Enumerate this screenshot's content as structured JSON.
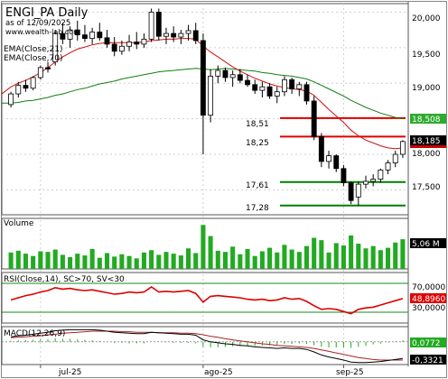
{
  "chart_data": {
    "type": "candlestick",
    "title": "ENGI_PA Daily",
    "subtitle": "as of 12/09/2025",
    "watermark": "www.wealth-lab.com",
    "indicators_legend": [
      "EMA(Close,21)",
      "EMA(Close,70)"
    ],
    "x_tick_labels": [
      "jul-25",
      "ago-25",
      "sep-25"
    ],
    "price_axis": {
      "ticks": [
        "20,000",
        "19,500",
        "19,000",
        "18,500",
        "18,000",
        "17,500"
      ],
      "ylim": [
        17.15,
        20.12
      ]
    },
    "levels": [
      {
        "label": "18,51",
        "value": 18.51,
        "color": "#e00000"
      },
      {
        "label": "18,25",
        "value": 18.25,
        "color": "#e00000"
      },
      {
        "label": "17,61",
        "value": 17.61,
        "color": "#008000"
      },
      {
        "label": "17,28",
        "value": 17.28,
        "color": "#008000"
      }
    ],
    "price_badges": [
      {
        "label": "18,508",
        "value": 18.508,
        "color": "#2eaa2e"
      },
      {
        "label": "18,185",
        "value": 18.185,
        "color": "#cc0000"
      },
      {
        "label": "18,185",
        "value": 18.185,
        "color": "#000000"
      }
    ],
    "candles": [
      [
        18.7,
        18.88,
        18.66,
        18.85
      ],
      [
        18.85,
        19.02,
        18.8,
        18.97
      ],
      [
        18.97,
        19.05,
        18.88,
        18.93
      ],
      [
        18.93,
        19.1,
        18.9,
        19.08
      ],
      [
        19.08,
        19.25,
        19.05,
        19.22
      ],
      [
        19.22,
        19.3,
        19.15,
        19.2
      ],
      [
        19.3,
        19.75,
        19.25,
        19.7
      ],
      [
        19.7,
        19.85,
        19.55,
        19.62
      ],
      [
        19.62,
        19.8,
        19.5,
        19.75
      ],
      [
        19.75,
        19.88,
        19.6,
        19.68
      ],
      [
        19.68,
        19.82,
        19.58,
        19.63
      ],
      [
        19.63,
        19.78,
        19.55,
        19.72
      ],
      [
        19.72,
        19.85,
        19.6,
        19.64
      ],
      [
        19.64,
        19.75,
        19.5,
        19.55
      ],
      [
        19.55,
        19.65,
        19.38,
        19.45
      ],
      [
        19.45,
        19.6,
        19.4,
        19.52
      ],
      [
        19.52,
        19.68,
        19.45,
        19.58
      ],
      [
        19.58,
        19.72,
        19.48,
        19.55
      ],
      [
        19.55,
        19.7,
        19.5,
        19.62
      ],
      [
        19.62,
        20.05,
        19.58,
        20.0
      ],
      [
        20.0,
        20.05,
        19.6,
        19.66
      ],
      [
        19.66,
        19.78,
        19.55,
        19.7
      ],
      [
        19.7,
        19.8,
        19.58,
        19.65
      ],
      [
        19.65,
        19.75,
        19.55,
        19.7
      ],
      [
        19.7,
        19.82,
        19.6,
        19.74
      ],
      [
        19.74,
        19.85,
        19.55,
        19.6
      ],
      [
        19.6,
        19.7,
        18.0,
        18.55
      ],
      [
        18.55,
        19.2,
        18.45,
        19.1
      ],
      [
        19.1,
        19.25,
        19.0,
        19.18
      ],
      [
        19.18,
        19.22,
        19.02,
        19.08
      ],
      [
        19.08,
        19.18,
        18.95,
        19.12
      ],
      [
        19.12,
        19.2,
        19.0,
        19.04
      ],
      [
        19.04,
        19.12,
        18.95,
        18.98
      ],
      [
        18.98,
        19.05,
        18.85,
        18.9
      ],
      [
        18.9,
        19.02,
        18.8,
        18.95
      ],
      [
        18.95,
        19.0,
        18.78,
        18.82
      ],
      [
        18.82,
        18.95,
        18.72,
        18.88
      ],
      [
        18.88,
        19.1,
        18.82,
        19.05
      ],
      [
        19.05,
        19.08,
        18.85,
        18.92
      ],
      [
        18.92,
        19.02,
        18.82,
        18.98
      ],
      [
        18.98,
        19.02,
        18.7,
        18.75
      ],
      [
        18.75,
        18.82,
        18.2,
        18.25
      ],
      [
        18.25,
        18.3,
        17.82,
        17.9
      ],
      [
        17.9,
        18.05,
        17.8,
        17.98
      ],
      [
        17.98,
        18.0,
        17.75,
        17.8
      ],
      [
        17.8,
        17.85,
        17.55,
        17.6
      ],
      [
        17.6,
        17.62,
        17.3,
        17.35
      ],
      [
        17.4,
        17.62,
        17.28,
        17.58
      ],
      [
        17.58,
        17.7,
        17.52,
        17.62
      ],
      [
        17.62,
        17.72,
        17.55,
        17.65
      ],
      [
        17.65,
        17.8,
        17.6,
        17.78
      ],
      [
        17.78,
        17.92,
        17.72,
        17.88
      ],
      [
        17.88,
        18.05,
        17.82,
        18.0
      ],
      [
        18.0,
        18.2,
        17.95,
        18.18
      ]
    ],
    "ema21": [
      18.95,
      19.0,
      19.04,
      19.09,
      19.15,
      19.22,
      19.3,
      19.37,
      19.43,
      19.48,
      19.51,
      19.54,
      19.56,
      19.57,
      19.57,
      19.57,
      19.57,
      19.57,
      19.58,
      19.6,
      19.61,
      19.62,
      19.62,
      19.63,
      19.63,
      19.62,
      19.52,
      19.44,
      19.37,
      19.3,
      19.23,
      19.17,
      19.12,
      19.07,
      19.03,
      18.99,
      18.96,
      18.94,
      18.92,
      18.91,
      18.89,
      18.83,
      18.73,
      18.63,
      18.54,
      18.45,
      18.34,
      18.26,
      18.2,
      18.16,
      18.12,
      18.09,
      18.08,
      18.09
    ],
    "ema70": [
      18.72,
      18.73,
      18.75,
      18.76,
      18.78,
      18.8,
      18.83,
      18.85,
      18.88,
      18.91,
      18.93,
      18.96,
      18.99,
      19.01,
      19.03,
      19.06,
      19.08,
      19.1,
      19.12,
      19.14,
      19.16,
      19.17,
      19.18,
      19.19,
      19.2,
      19.21,
      19.2,
      19.19,
      19.2,
      19.21,
      19.2,
      19.19,
      19.18,
      19.17,
      19.15,
      19.14,
      19.12,
      19.11,
      19.1,
      19.08,
      19.06,
      19.02,
      18.97,
      18.92,
      18.87,
      18.82,
      18.76,
      18.71,
      18.66,
      18.62,
      18.58,
      18.55,
      18.52,
      18.5
    ],
    "volume": {
      "label": "Volume",
      "badge": "5,06 M",
      "values": [
        2.8,
        3.1,
        2.6,
        2.2,
        3.0,
        2.9,
        3.3,
        2.4,
        2.0,
        2.6,
        2.3,
        3.4,
        1.9,
        2.7,
        2.1,
        2.5,
        2.2,
        1.8,
        2.8,
        3.2,
        2.4,
        2.9,
        2.6,
        2.3,
        3.5,
        2.7,
        7.5,
        5.6,
        3.1,
        2.9,
        3.8,
        2.5,
        3.4,
        2.2,
        3.0,
        3.6,
        2.8,
        4.1,
        3.3,
        2.9,
        3.9,
        5.3,
        4.9,
        2.8,
        4.4,
        4.0,
        5.7,
        4.3,
        3.5,
        3.9,
        3.2,
        3.6,
        4.5,
        5.06
      ]
    },
    "rsi": {
      "label": "RSI(Close,14), SC>70, SV<30",
      "badge": "48,8960",
      "ticks": [
        "70,0000",
        "30,0000"
      ],
      "ylim": [
        15,
        85
      ],
      "values": [
        47,
        50,
        53,
        55,
        58,
        60,
        64,
        62,
        63,
        61,
        60,
        61,
        59,
        57,
        55,
        56,
        58,
        57,
        58,
        65,
        58,
        59,
        58,
        59,
        60,
        56,
        44,
        52,
        53,
        52,
        51,
        50,
        48,
        47,
        48,
        46,
        47,
        50,
        48,
        49,
        45,
        39,
        34,
        35,
        34,
        31,
        28,
        34,
        36,
        37,
        40,
        43,
        46,
        48.9
      ]
    },
    "macd": {
      "label": "MACD(12,26,9)",
      "badges": [
        "0,0772",
        "-0,3321"
      ],
      "ylim": [
        -0.45,
        0.3
      ],
      "values": [
        0.1,
        0.12,
        0.13,
        0.15,
        0.17,
        0.19,
        0.22,
        0.23,
        0.24,
        0.24,
        0.24,
        0.24,
        0.23,
        0.21,
        0.19,
        0.18,
        0.17,
        0.16,
        0.16,
        0.19,
        0.18,
        0.17,
        0.16,
        0.15,
        0.15,
        0.13,
        0.04,
        0.0,
        -0.02,
        -0.04,
        -0.05,
        -0.07,
        -0.08,
        -0.1,
        -0.11,
        -0.12,
        -0.13,
        -0.12,
        -0.13,
        -0.13,
        -0.15,
        -0.2,
        -0.26,
        -0.3,
        -0.33,
        -0.36,
        -0.4,
        -0.41,
        -0.41,
        -0.4,
        -0.39,
        -0.37,
        -0.35,
        -0.33
      ],
      "signal": [
        0.08,
        0.09,
        0.1,
        0.11,
        0.12,
        0.14,
        0.15,
        0.17,
        0.18,
        0.19,
        0.2,
        0.21,
        0.21,
        0.21,
        0.21,
        0.2,
        0.2,
        0.19,
        0.19,
        0.19,
        0.18,
        0.18,
        0.18,
        0.17,
        0.17,
        0.16,
        0.14,
        0.11,
        0.09,
        0.06,
        0.04,
        0.02,
        0.0,
        -0.02,
        -0.04,
        -0.05,
        -0.07,
        -0.08,
        -0.09,
        -0.1,
        -0.11,
        -0.13,
        -0.16,
        -0.19,
        -0.22,
        -0.25,
        -0.28,
        -0.31,
        -0.33,
        -0.35,
        -0.36,
        -0.36,
        -0.36,
        -0.36
      ]
    }
  },
  "colors": {
    "up_candle": "#ffffff",
    "down_candle": "#000000",
    "ema21": "#d01010",
    "ema70": "#108010",
    "volume_bar": "#22aa22",
    "rsi_line": "#dd0000",
    "macd_line": "#000000",
    "signal_line": "#aa2222",
    "hist": "#22aa22",
    "grid": "#cfcfcf",
    "badge_text": "#ffffff"
  }
}
